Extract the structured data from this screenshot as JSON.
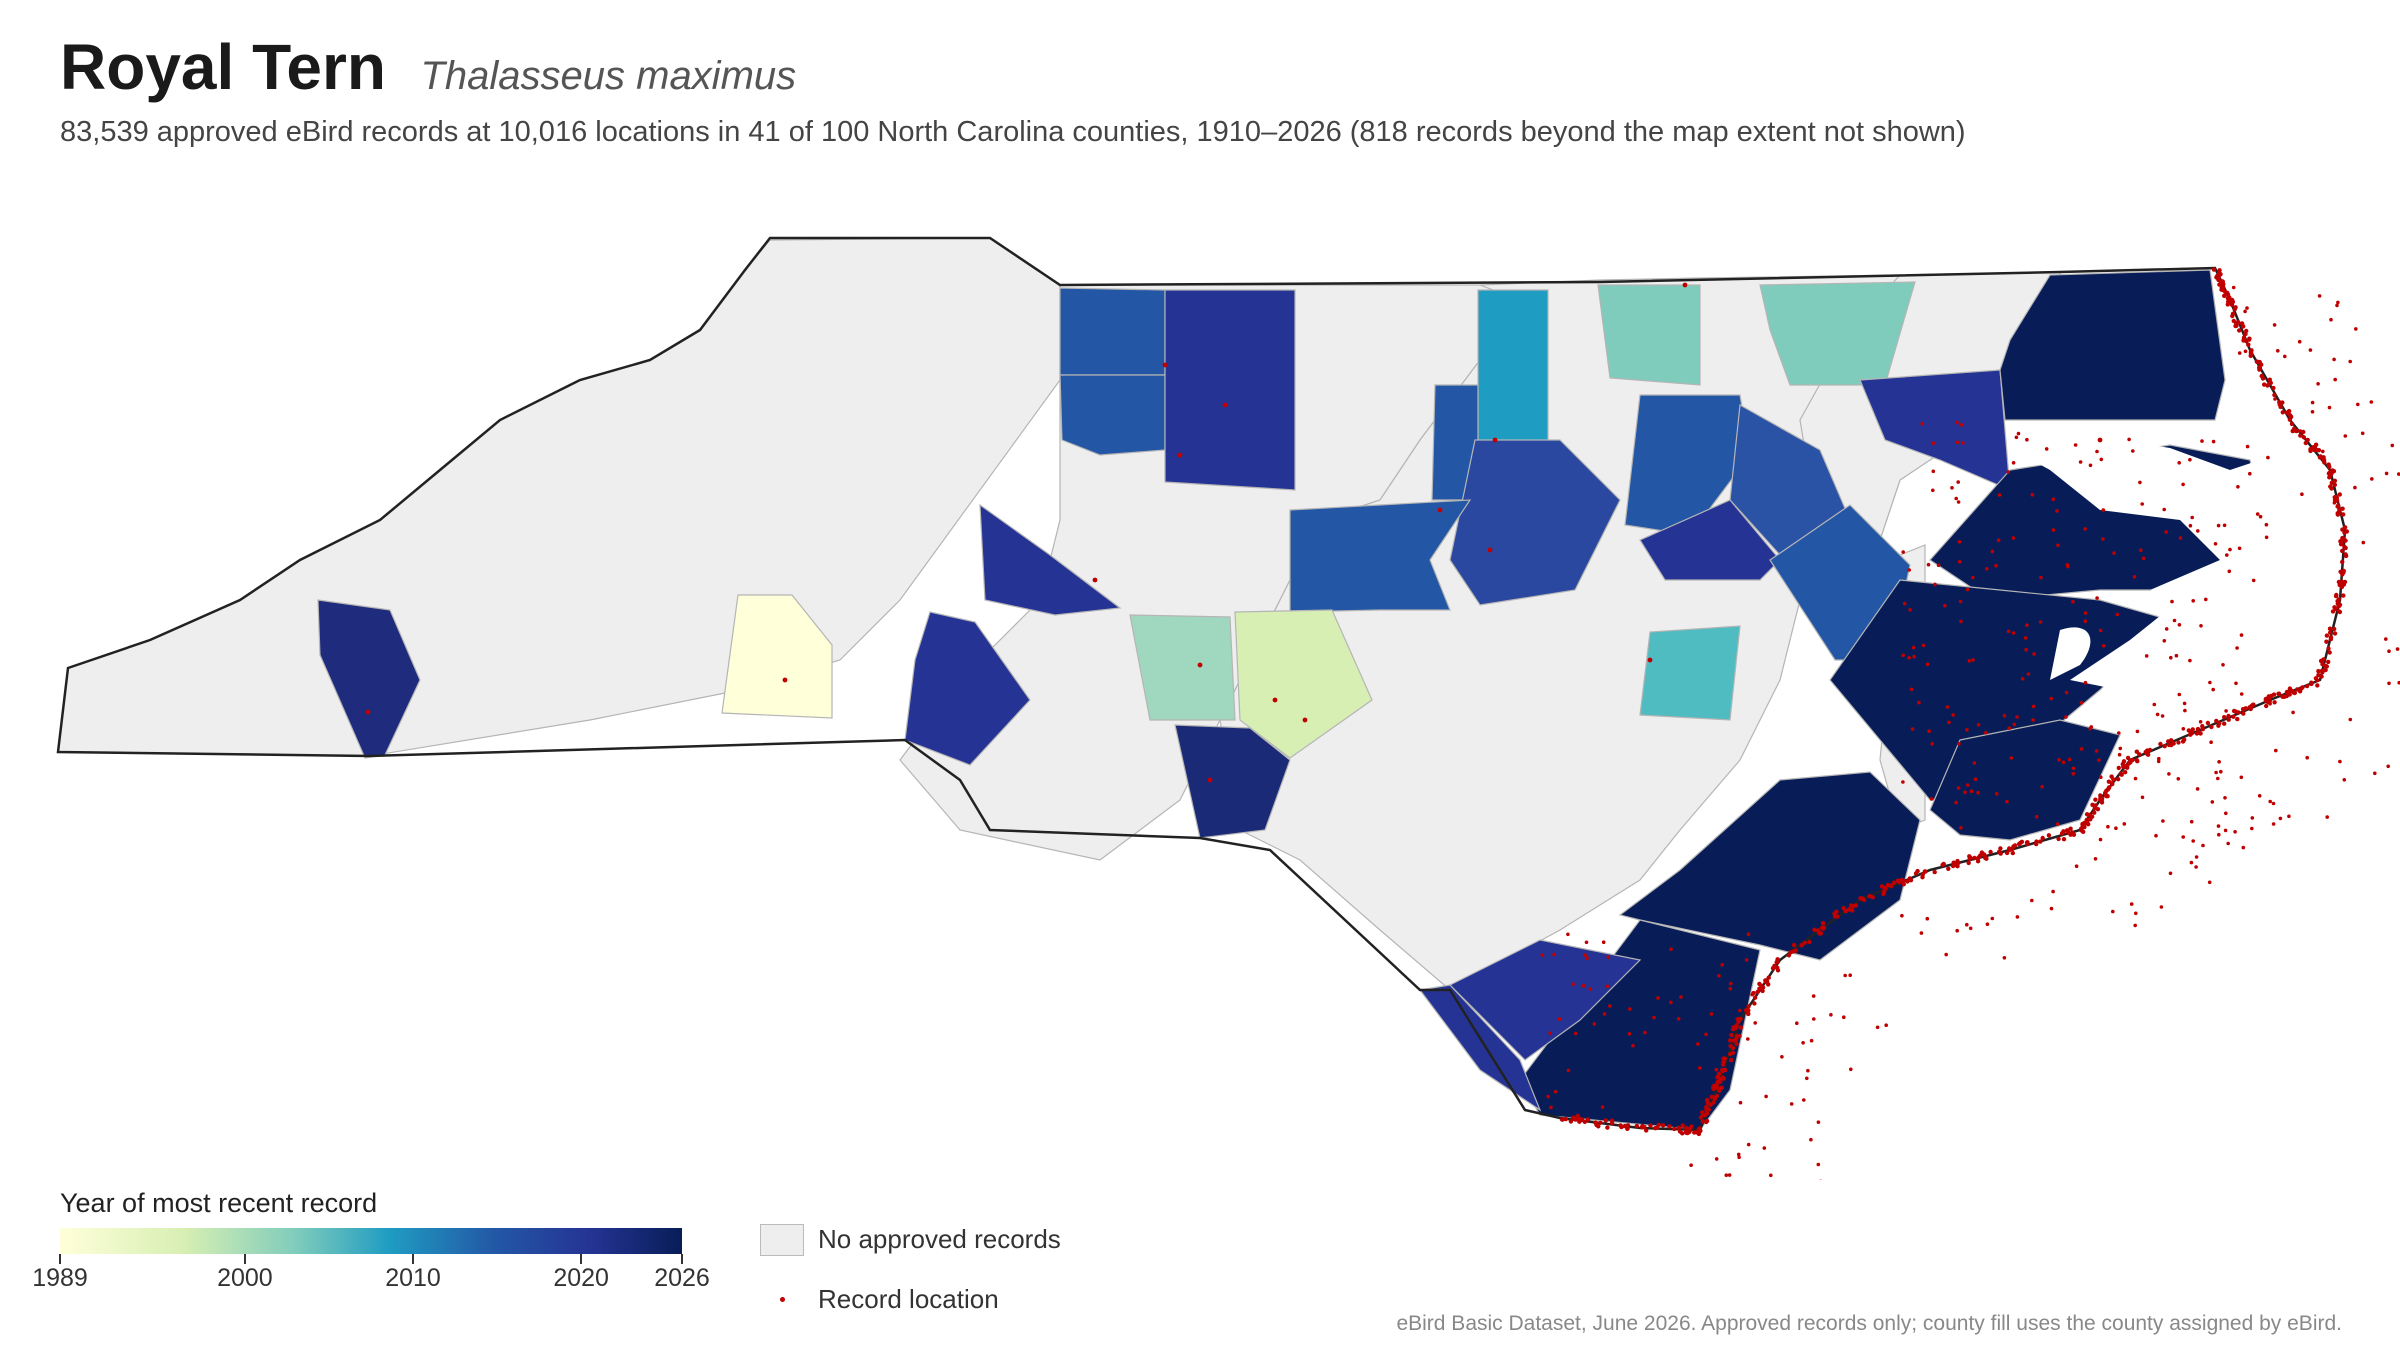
{
  "header": {
    "title": "Royal Tern",
    "scientific_name": "Thalasseus maximus",
    "subtitle": "83,539 approved eBird records at 10,016 locations in 41 of 100 North Carolina counties, 1910–2026 (818 records beyond the map extent not shown)"
  },
  "legend": {
    "colorbar_title": "Year of most recent record",
    "ticks": [
      {
        "year": 1989,
        "label": "1989"
      },
      {
        "year": 2000,
        "label": "2000"
      },
      {
        "year": 2010,
        "label": "2010"
      },
      {
        "year": 2020,
        "label": "2020"
      },
      {
        "year": 2026,
        "label": "2026"
      }
    ],
    "range": [
      1989,
      2026
    ],
    "no_records_label": "No approved records",
    "record_location_label": "Record location"
  },
  "colors": {
    "no_records": "#eeeeee",
    "record_dot": "#c00000",
    "scale": [
      "#ffffd9",
      "#d7efb3",
      "#7fccbc",
      "#1f9cc2",
      "#2357a6",
      "#253494",
      "#081d58"
    ],
    "state_outline": "#222222",
    "county_lines": "#bbbbbb"
  },
  "footer": {
    "source": "eBird Basic Dataset, June 2026. Approved records only; county fill uses the county assigned by eBird."
  }
}
